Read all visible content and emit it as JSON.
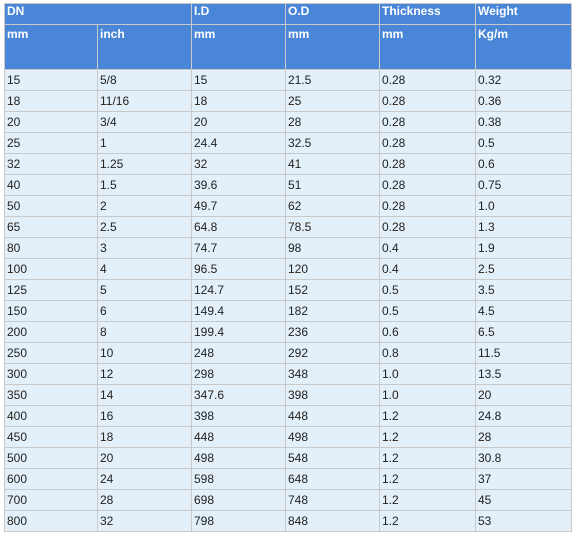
{
  "table": {
    "group_headers": {
      "dn": "DN",
      "id": "I.D",
      "od": "O.D",
      "thickness": "Thickness",
      "weight": "Weight"
    },
    "unit_headers": [
      "mm",
      "inch",
      "mm",
      "mm",
      "mm",
      "Kg/m"
    ],
    "rows": [
      [
        "15",
        "5/8",
        "15",
        "21.5",
        "0.28",
        "0.32"
      ],
      [
        "18",
        "11/16",
        "18",
        "25",
        "0.28",
        "0.36"
      ],
      [
        "20",
        "3/4",
        "20",
        "28",
        "0.28",
        "0.38"
      ],
      [
        "25",
        "1",
        "24.4",
        "32.5",
        "0.28",
        "0.5"
      ],
      [
        "32",
        "1.25",
        "32",
        "41",
        "0.28",
        "0.6"
      ],
      [
        "40",
        "1.5",
        "39.6",
        "51",
        "0.28",
        "0.75"
      ],
      [
        "50",
        "2",
        "49.7",
        "62",
        "0.28",
        "1.0"
      ],
      [
        "65",
        "2.5",
        "64.8",
        "78.5",
        "0.28",
        "1.3"
      ],
      [
        "80",
        "3",
        "74.7",
        "98",
        "0.4",
        "1.9"
      ],
      [
        "100",
        "4",
        "96.5",
        "120",
        "0.4",
        "2.5"
      ],
      [
        "125",
        "5",
        "124.7",
        "152",
        "0.5",
        "3.5"
      ],
      [
        "150",
        "6",
        "149.4",
        "182",
        "0.5",
        "4.5"
      ],
      [
        "200",
        "8",
        "199.4",
        "236",
        "0.6",
        "6.5"
      ],
      [
        "250",
        "10",
        "248",
        "292",
        "0.8",
        "11.5"
      ],
      [
        "300",
        "12",
        "298",
        "348",
        "1.0",
        "13.5"
      ],
      [
        "350",
        "14",
        "347.6",
        "398",
        "1.0",
        "20"
      ],
      [
        "400",
        "16",
        "398",
        "448",
        "1.2",
        "24.8"
      ],
      [
        "450",
        "18",
        "448",
        "498",
        "1.2",
        "28"
      ],
      [
        "500",
        "20",
        "498",
        "548",
        "1.2",
        "30.8"
      ],
      [
        "600",
        "24",
        "598",
        "648",
        "1.2",
        "37"
      ],
      [
        "700",
        "28",
        "698",
        "748",
        "1.2",
        "45"
      ],
      [
        "800",
        "32",
        "798",
        "848",
        "1.2",
        "53"
      ]
    ]
  },
  "colors": {
    "header_bg": "#4a86d8",
    "header_text": "#ffffff",
    "row_bg": "#e3f0f9",
    "border": "#c9c9c9"
  }
}
